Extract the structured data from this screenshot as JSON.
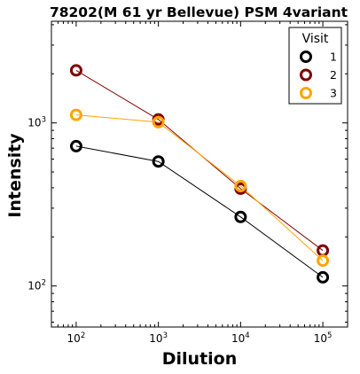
{
  "chart_data": {
    "type": "line",
    "title": "78202(M 61 yr Bellevue) PSM 4variant",
    "xlabel": "Dilution",
    "ylabel": "Intensity",
    "x_scale": "log",
    "y_scale": "log",
    "x": [
      100,
      1000,
      10000,
      100000
    ],
    "xlim": [
      50,
      200000
    ],
    "ylim": [
      56,
      4200
    ],
    "x_ticks": [
      {
        "base": "10",
        "exp": "2",
        "value": 100
      },
      {
        "base": "10",
        "exp": "3",
        "value": 1000
      },
      {
        "base": "10",
        "exp": "4",
        "value": 10000
      },
      {
        "base": "10",
        "exp": "5",
        "value": 100000
      }
    ],
    "y_ticks": [
      {
        "base": "10",
        "exp": "2",
        "value": 100
      },
      {
        "base": "10",
        "exp": "3",
        "value": 1000
      }
    ],
    "legend": {
      "title": "Visit",
      "position": "top-right"
    },
    "series": [
      {
        "name": "1",
        "color": "#000000",
        "values": [
          720,
          580,
          265,
          113
        ]
      },
      {
        "name": "2",
        "color": "#7f0000",
        "values": [
          2100,
          1050,
          395,
          165
        ]
      },
      {
        "name": "3",
        "color": "#ffa500",
        "values": [
          1120,
          1010,
          410,
          143
        ]
      }
    ]
  }
}
